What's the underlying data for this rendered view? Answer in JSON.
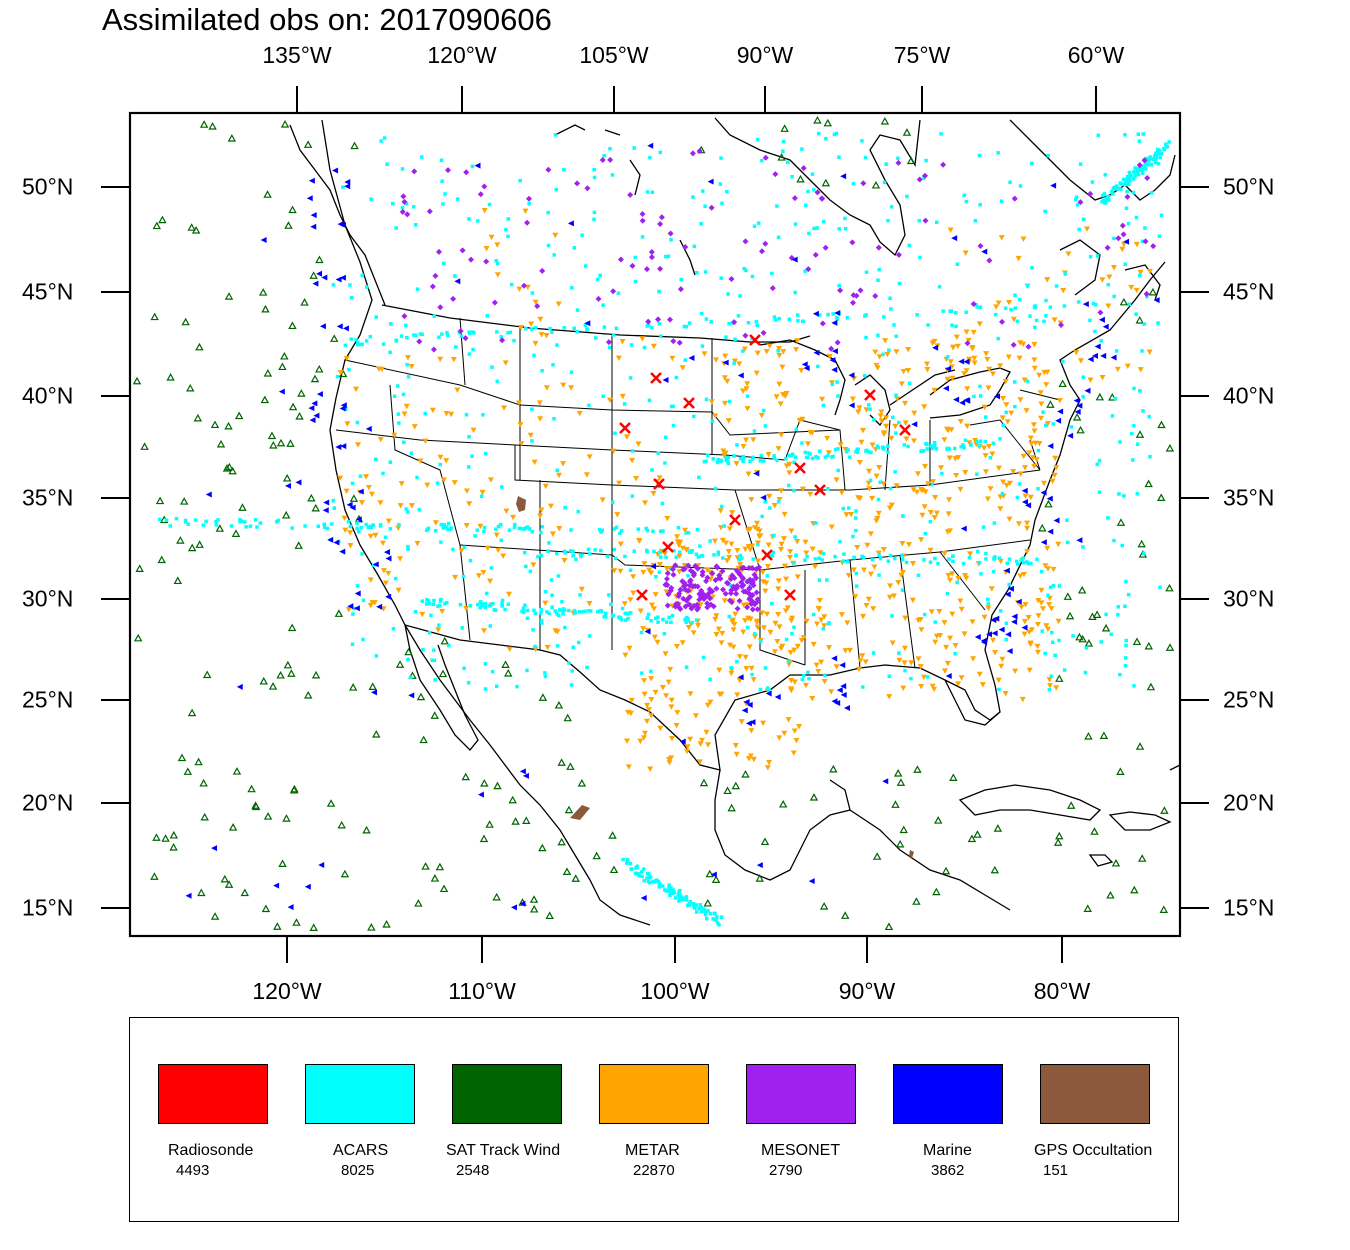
{
  "title": "Assimilated obs on: 2017090606",
  "axes": {
    "top_lon_labels": [
      "135°W",
      "120°W",
      "105°W",
      "90°W",
      "75°W",
      "60°W"
    ],
    "bottom_lon_labels": [
      "120°W",
      "110°W",
      "100°W",
      "90°W",
      "80°W"
    ],
    "lat_labels": [
      "50°N",
      "45°N",
      "40°N",
      "35°N",
      "30°N",
      "25°N",
      "20°N",
      "15°N"
    ]
  },
  "legend": [
    {
      "name": "Radiosonde",
      "count": "4493",
      "color": "#ff0000"
    },
    {
      "name": "ACARS",
      "count": "8025",
      "color": "#00ffff"
    },
    {
      "name": "SAT Track Wind",
      "count": "2548",
      "color": "#006400"
    },
    {
      "name": "METAR",
      "count": "22870",
      "color": "#ffa500"
    },
    {
      "name": "MESONET",
      "count": "2790",
      "color": "#a020f0"
    },
    {
      "name": "Marine",
      "count": "3862",
      "color": "#0000ff"
    },
    {
      "name": "GPS Occultation",
      "count": "151",
      "color": "#8b5a3c"
    }
  ],
  "colors": {
    "map_lines": "#000000",
    "radiosonde": "#ff0000",
    "acars": "#00ffff",
    "sat_track_wind": "#006400",
    "metar": "#ffa500",
    "mesonet": "#a020f0",
    "marine": "#0000ff",
    "gps": "#8b5a3c"
  }
}
